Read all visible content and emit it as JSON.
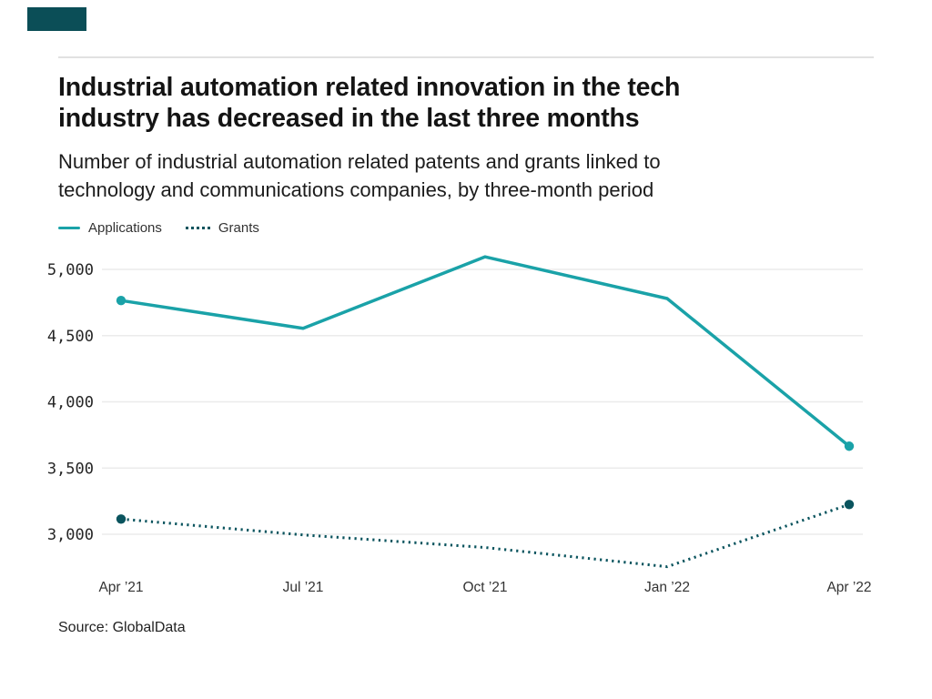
{
  "brand": {
    "accent_color": "#0b4e57"
  },
  "header": {
    "title": "Industrial automation related innovation in the tech\nindustry has decreased in the last three months",
    "subtitle": "Number of industrial automation related patents and grants linked to\ntechnology and communications companies, by three-month period"
  },
  "legend": [
    {
      "label": "Applications",
      "style": "solid",
      "color": "#1aa2a8"
    },
    {
      "label": "Grants",
      "style": "dotted",
      "color": "#0a545e"
    }
  ],
  "chart_data": {
    "type": "line",
    "title": "Industrial automation related innovation in the tech industry has decreased in the last three months",
    "subtitle": "Number of industrial automation related patents and grants linked to technology and communications companies, by three-month period",
    "categories": [
      "Apr ’21",
      "Jul ’21",
      "Oct ’21",
      "Jan ’22",
      "Apr ’22"
    ],
    "series": [
      {
        "name": "Applications",
        "style": "solid",
        "color": "#1aa2a8",
        "endpoint_dots": true,
        "values": [
          4765,
          4555,
          5095,
          4780,
          3665
        ]
      },
      {
        "name": "Grants",
        "style": "dotted",
        "color": "#0a545e",
        "endpoint_dots": true,
        "values": [
          3115,
          2995,
          2900,
          2755,
          3225
        ]
      }
    ],
    "xlabel": "",
    "ylabel": "",
    "yticks": [
      5000,
      4500,
      4000,
      3500,
      3000
    ],
    "ytick_labels": [
      "5,000",
      "4,500",
      "4,000",
      "3,500",
      "3,000"
    ],
    "ylim": [
      2700,
      5200
    ],
    "grid": true,
    "legend_position": "top-left",
    "source": "Source: GlobalData"
  },
  "footer": {
    "source": "Source: GlobalData"
  }
}
